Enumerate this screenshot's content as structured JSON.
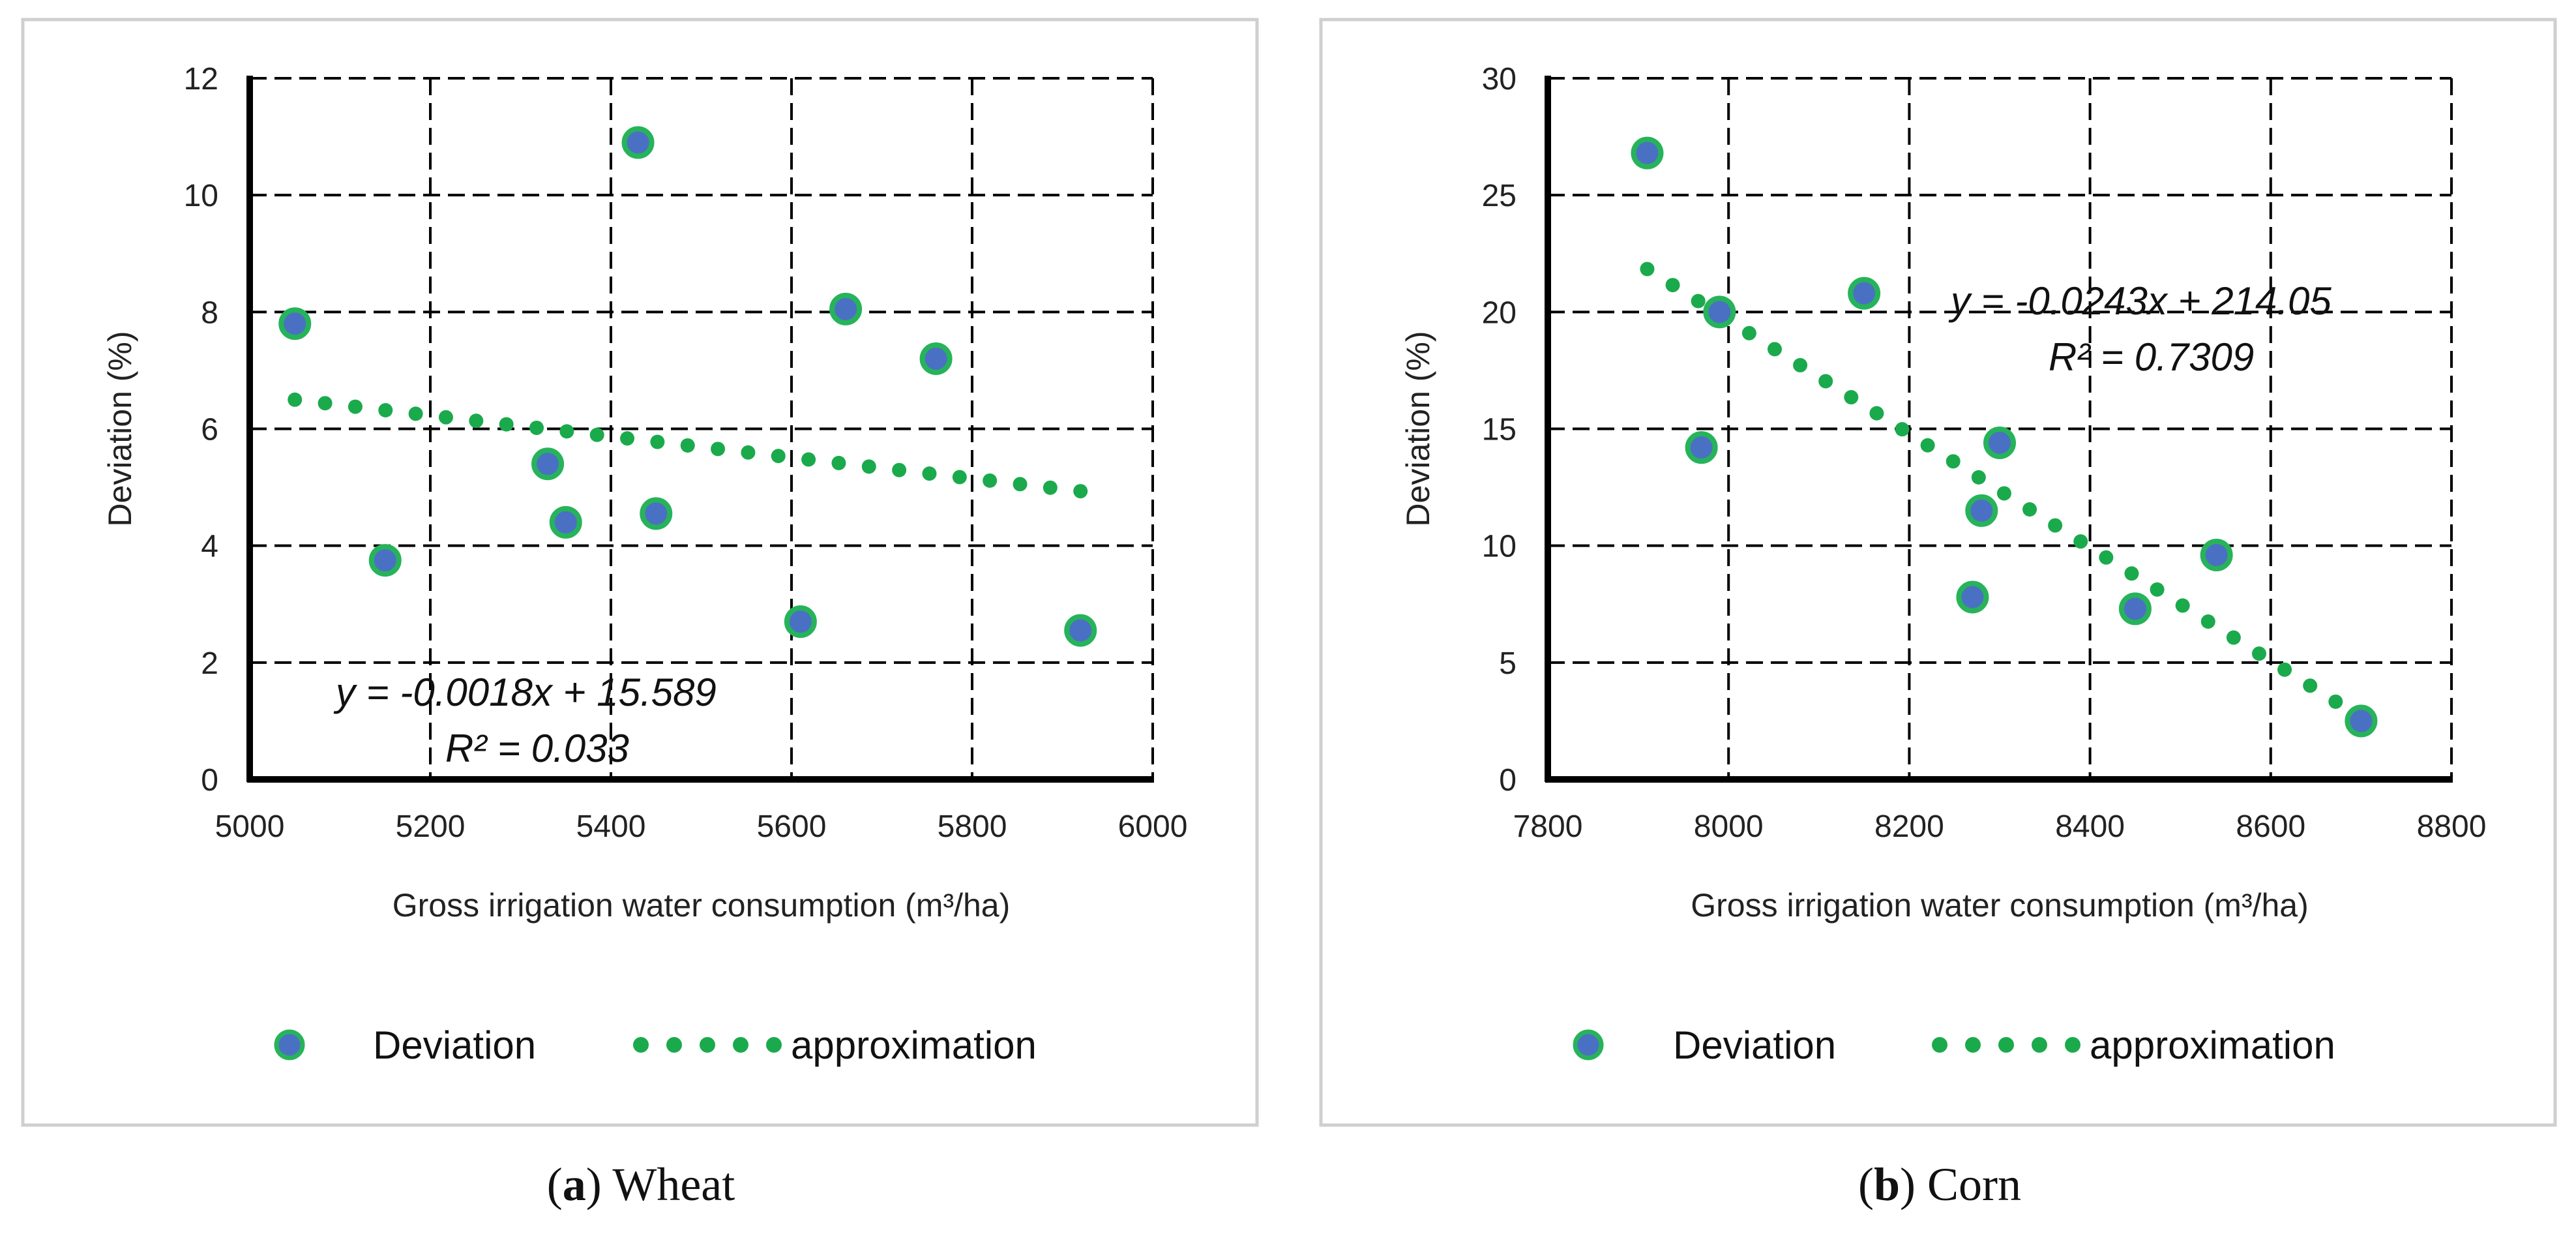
{
  "colors": {
    "point_fill": "#4a70c4",
    "point_stroke": "#27b35a",
    "trend": "#1aaa4c",
    "grid": "#000000",
    "panel_border": "#cfcfcf"
  },
  "legend": {
    "series_label": "Deviation",
    "trend_label": "approximation"
  },
  "chart_data": [
    {
      "type": "scatter",
      "caption_letter": "a",
      "caption_name": "Wheat",
      "xlabel": "Gross irrigation water consumption (m³/ha)",
      "ylabel": "Deviation (%)",
      "xlim": [
        5000,
        6000
      ],
      "ylim": [
        0,
        12
      ],
      "xticks": [
        5000,
        5200,
        5400,
        5600,
        5800,
        6000
      ],
      "yticks": [
        0,
        2,
        4,
        6,
        8,
        10,
        12
      ],
      "grid": true,
      "legend_position": "bottom",
      "series": [
        {
          "name": "Deviation",
          "x": [
            5050,
            5150,
            5330,
            5350,
            5430,
            5450,
            5610,
            5660,
            5760,
            5920
          ],
          "y": [
            7.8,
            3.75,
            5.4,
            4.4,
            10.9,
            4.55,
            2.7,
            8.05,
            7.2,
            2.55
          ]
        }
      ],
      "trendline": {
        "name": "approximation",
        "slope": -0.0018,
        "intercept": 15.589,
        "x_range": [
          5050,
          5920
        ]
      },
      "equation": "y = -0.0018x + 15.589",
      "r_squared": "R² = 0.033"
    },
    {
      "type": "scatter",
      "caption_letter": "b",
      "caption_name": "Corn",
      "xlabel": "Gross irrigation water consumption (m³/ha)",
      "ylabel": "Deviation (%)",
      "xlim": [
        7800,
        8800
      ],
      "ylim": [
        0,
        30
      ],
      "xticks": [
        7800,
        8000,
        8200,
        8400,
        8600,
        8800
      ],
      "yticks": [
        0,
        5,
        10,
        15,
        20,
        25,
        30
      ],
      "grid": true,
      "legend_position": "bottom",
      "series": [
        {
          "name": "Deviation",
          "x": [
            7910,
            7970,
            7990,
            8150,
            8270,
            8280,
            8300,
            8450,
            8540,
            8700
          ],
          "y": [
            26.8,
            14.2,
            20.0,
            20.8,
            7.8,
            11.5,
            14.4,
            7.3,
            9.6,
            2.5
          ]
        }
      ],
      "trendline": {
        "name": "approximation",
        "slope": -0.0243,
        "intercept": 214.05,
        "x_range": [
          7910,
          8700
        ]
      },
      "equation": "y = -0.0243x + 214.05",
      "r_squared": "R² = 0.7309"
    }
  ]
}
